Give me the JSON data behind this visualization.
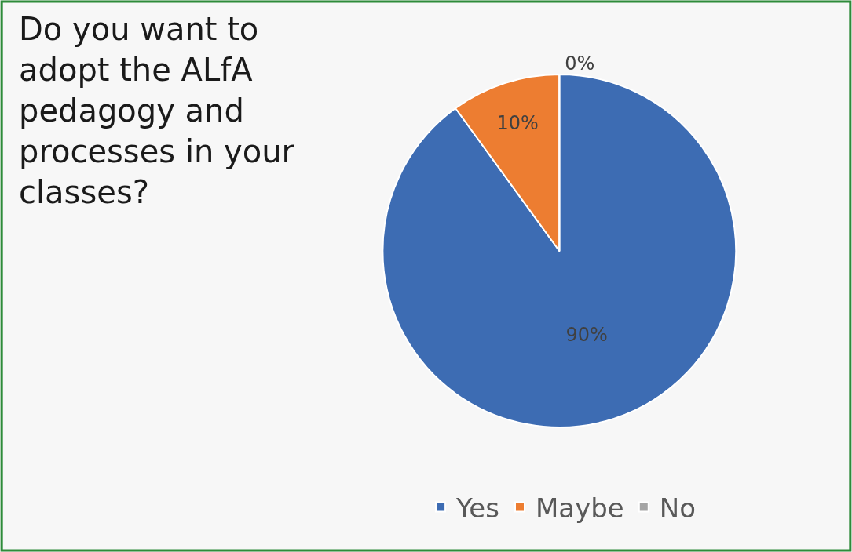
{
  "chart_data": {
    "type": "pie",
    "title": "Do you want to adopt the ALfA pedagogy and processes in your classes?",
    "categories": [
      "Yes",
      "Maybe",
      "No"
    ],
    "values": [
      90,
      10,
      0
    ],
    "colors": [
      "#3d6cb3",
      "#ed7d31",
      "#a5a5a5"
    ],
    "value_labels": [
      "90%",
      "10%",
      "0%"
    ],
    "legend": "bottom"
  }
}
